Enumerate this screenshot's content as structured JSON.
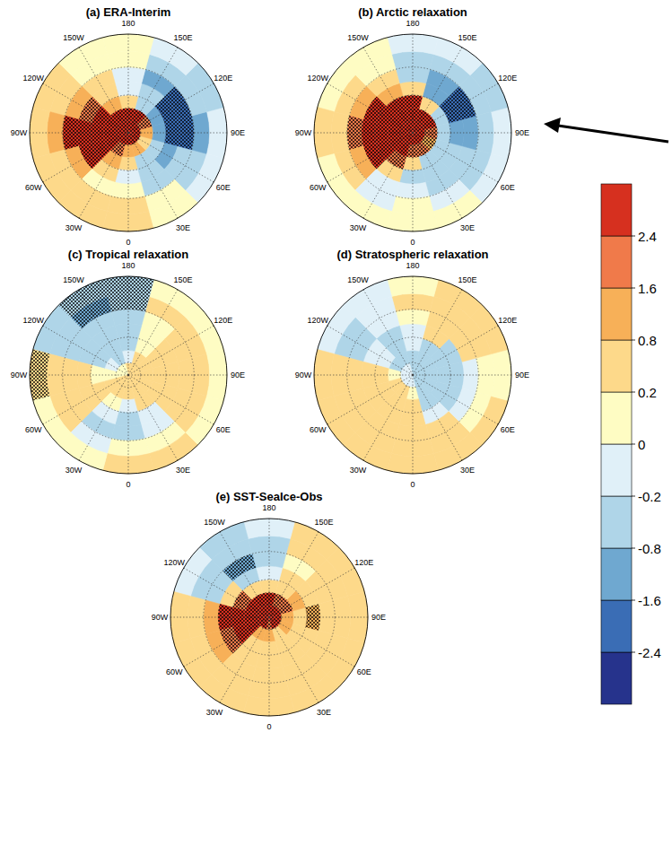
{
  "chart_data": {
    "type": "polar_map",
    "lat_edges": [
      90,
      80,
      70,
      60,
      50,
      40,
      30,
      20
    ],
    "lon_centers": [
      0,
      30,
      60,
      90,
      120,
      150,
      180,
      210,
      240,
      270,
      300,
      330
    ],
    "lon_labels": [
      0,
      {
        "value": 30,
        "label": "30E"
      },
      {
        "value": 60,
        "label": "60E"
      },
      {
        "value": 90,
        "label": "90E"
      },
      {
        "value": 120,
        "label": "120E"
      },
      {
        "value": 150,
        "label": "150E"
      },
      180,
      {
        "value": 210,
        "label": "150W"
      },
      {
        "value": 240,
        "label": "120W"
      },
      {
        "value": 270,
        "label": "90W"
      },
      {
        "value": 300,
        "label": "60W"
      },
      {
        "value": 330,
        "label": "30W"
      }
    ],
    "colorbar": {
      "ticks": [
        -2.4,
        -1.6,
        -0.8,
        -0.2,
        0,
        0.2,
        0.8,
        1.6,
        2.4
      ],
      "colors": [
        "#26338c",
        "#3a6db5",
        "#6fa8d0",
        "#afd5e8",
        "#e0f0f8",
        "#fefcc3",
        "#fdd98a",
        "#f7b058",
        "#f07a4a",
        "#d6301f"
      ]
    },
    "panels": [
      {
        "title": "(a) ERA-Interim",
        "values": [
          [
            2.6,
            2.8,
            2.8,
            3.0,
            3.0,
            3.2,
            3.2,
            3.2,
            3.0,
            3.0,
            2.8,
            2.6
          ],
          [
            1.2,
            1.0,
            0.6,
            1.2,
            2.0,
            3.0,
            3.2,
            3.2,
            2.8,
            2.8,
            2.6,
            1.8
          ],
          [
            0.3,
            -0.3,
            -0.6,
            -1.2,
            -1.0,
            -0.5,
            0.6,
            1.2,
            2.6,
            3.0,
            2.8,
            1.0
          ],
          [
            -0.1,
            -0.5,
            -0.9,
            -1.8,
            -2.0,
            -0.8,
            -0.1,
            0.4,
            1.8,
            3.0,
            2.8,
            0.3
          ],
          [
            0.1,
            -0.3,
            -0.8,
            -2.2,
            -1.8,
            -0.9,
            -0.2,
            0.2,
            0.8,
            2.4,
            1.2,
            0.1
          ],
          [
            0.4,
            0.1,
            -0.3,
            -0.9,
            -0.6,
            -0.4,
            0.0,
            0.1,
            0.6,
            1.2,
            0.6,
            0.2
          ],
          [
            0.2,
            0.1,
            -0.1,
            -0.2,
            -0.3,
            -0.1,
            0.1,
            0.1,
            0.3,
            0.4,
            0.3,
            0.3
          ]
        ],
        "stipple": [
          [
            0,
            0
          ],
          [
            0,
            1
          ],
          [
            0,
            2
          ],
          [
            0,
            3
          ],
          [
            0,
            4
          ],
          [
            0,
            5
          ],
          [
            0,
            6
          ],
          [
            0,
            7
          ],
          [
            0,
            8
          ],
          [
            0,
            9
          ],
          [
            0,
            10
          ],
          [
            0,
            11
          ],
          [
            1,
            4
          ],
          [
            1,
            5
          ],
          [
            1,
            6
          ],
          [
            1,
            7
          ],
          [
            1,
            8
          ],
          [
            1,
            9
          ],
          [
            1,
            10
          ],
          [
            1,
            11
          ],
          [
            2,
            8
          ],
          [
            2,
            9
          ],
          [
            2,
            10
          ],
          [
            3,
            3
          ],
          [
            3,
            4
          ],
          [
            3,
            8
          ],
          [
            3,
            9
          ],
          [
            3,
            10
          ],
          [
            4,
            3
          ],
          [
            4,
            4
          ],
          [
            4,
            9
          ]
        ]
      },
      {
        "title": "(b) Arctic relaxation",
        "values": [
          [
            3.0,
            3.0,
            3.0,
            3.0,
            3.0,
            3.0,
            3.0,
            3.0,
            3.0,
            3.0,
            3.0,
            3.0
          ],
          [
            2.2,
            1.6,
            1.4,
            1.8,
            2.6,
            3.0,
            3.2,
            3.2,
            3.2,
            3.2,
            3.0,
            2.6
          ],
          [
            0.4,
            -0.3,
            -0.6,
            -0.6,
            -0.4,
            0.6,
            2.4,
            2.8,
            3.0,
            3.0,
            2.8,
            1.6
          ],
          [
            -0.3,
            -0.5,
            -0.8,
            -1.0,
            -1.8,
            -0.9,
            0.2,
            0.8,
            2.6,
            3.0,
            2.6,
            0.3
          ],
          [
            -0.2,
            -0.6,
            -0.4,
            -0.9,
            -1.7,
            -1.0,
            -0.3,
            0.2,
            1.2,
            2.0,
            1.0,
            -0.2
          ],
          [
            0.1,
            -0.2,
            -0.3,
            -0.4,
            -0.8,
            -0.6,
            -0.3,
            0.1,
            0.3,
            0.4,
            0.2,
            -0.2
          ],
          [
            0.1,
            0.0,
            -0.1,
            -0.2,
            -0.3,
            -0.2,
            -0.1,
            0.0,
            0.1,
            0.2,
            0.1,
            0.0
          ]
        ],
        "stipple": [
          [
            0,
            0
          ],
          [
            0,
            1
          ],
          [
            0,
            2
          ],
          [
            0,
            3
          ],
          [
            0,
            4
          ],
          [
            0,
            5
          ],
          [
            0,
            6
          ],
          [
            0,
            7
          ],
          [
            0,
            8
          ],
          [
            0,
            9
          ],
          [
            0,
            10
          ],
          [
            0,
            11
          ],
          [
            1,
            0
          ],
          [
            1,
            1
          ],
          [
            1,
            2
          ],
          [
            1,
            3
          ],
          [
            1,
            4
          ],
          [
            1,
            5
          ],
          [
            1,
            6
          ],
          [
            1,
            7
          ],
          [
            1,
            8
          ],
          [
            1,
            9
          ],
          [
            1,
            10
          ],
          [
            1,
            11
          ],
          [
            2,
            6
          ],
          [
            2,
            7
          ],
          [
            2,
            8
          ],
          [
            2,
            9
          ],
          [
            2,
            10
          ],
          [
            2,
            11
          ],
          [
            3,
            4
          ],
          [
            3,
            8
          ],
          [
            3,
            9
          ],
          [
            3,
            10
          ],
          [
            4,
            4
          ],
          [
            4,
            9
          ]
        ]
      },
      {
        "title": "(c) Tropical relaxation",
        "values": [
          [
            0.3,
            0.3,
            0.3,
            0.3,
            0.3,
            0.2,
            0.2,
            0.1,
            0.1,
            0.1,
            0.2,
            0.2
          ],
          [
            0.2,
            0.3,
            0.4,
            0.4,
            0.3,
            0.2,
            -0.1,
            -0.3,
            -0.2,
            0.1,
            0.2,
            0.2
          ],
          [
            -0.1,
            0.2,
            0.4,
            0.5,
            0.4,
            0.1,
            -0.3,
            -0.6,
            -0.4,
            0.1,
            0.3,
            0.1
          ],
          [
            -0.3,
            -0.2,
            0.3,
            0.5,
            0.4,
            0.0,
            -0.4,
            -0.7,
            -0.4,
            0.2,
            0.3,
            -0.1
          ],
          [
            -0.5,
            -0.2,
            0.2,
            0.3,
            0.3,
            0.1,
            -0.3,
            -0.6,
            -0.5,
            0.3,
            0.4,
            -0.3
          ],
          [
            0.1,
            0.1,
            0.2,
            0.2,
            0.2,
            0.2,
            -0.5,
            -0.9,
            -0.6,
            0.5,
            0.2,
            -0.2
          ],
          [
            0.2,
            0.2,
            0.1,
            0.1,
            0.1,
            0.1,
            -0.6,
            -0.8,
            -0.3,
            0.6,
            0.1,
            0.1
          ]
        ],
        "stipple": [
          [
            5,
            6
          ],
          [
            5,
            7
          ],
          [
            6,
            6
          ],
          [
            6,
            7
          ],
          [
            6,
            9
          ]
        ]
      },
      {
        "title": "(d) Stratospheric relaxation",
        "values": [
          [
            -0.2,
            -0.3,
            -0.3,
            -0.3,
            -0.3,
            -0.3,
            -0.3,
            -0.2,
            -0.2,
            -0.2,
            -0.1,
            -0.1
          ],
          [
            0.1,
            -0.3,
            -0.4,
            -0.5,
            -0.4,
            -0.4,
            -0.3,
            -0.3,
            -0.3,
            0.1,
            0.3,
            0.3
          ],
          [
            0.2,
            -0.3,
            -0.5,
            -0.5,
            -0.4,
            -0.3,
            -0.2,
            -0.3,
            -0.2,
            0.3,
            0.5,
            0.4
          ],
          [
            0.3,
            -0.2,
            -0.4,
            -0.4,
            -0.3,
            0.2,
            -0.1,
            -0.3,
            -0.2,
            0.3,
            0.4,
            0.3
          ],
          [
            0.3,
            0.2,
            -0.2,
            -0.2,
            0.2,
            0.3,
            0.1,
            -0.2,
            -0.3,
            0.2,
            0.3,
            0.2
          ],
          [
            0.2,
            0.3,
            0.1,
            0.1,
            0.3,
            0.3,
            0.2,
            -0.1,
            -0.3,
            0.2,
            0.2,
            0.3
          ],
          [
            0.2,
            0.2,
            0.2,
            0.1,
            0.2,
            0.2,
            0.1,
            -0.1,
            -0.2,
            0.2,
            0.2,
            0.2
          ]
        ],
        "stipple": []
      },
      {
        "title": "(e) SST-SeaIce-Obs",
        "values": [
          [
            2.2,
            2.4,
            2.6,
            2.8,
            2.8,
            2.8,
            2.8,
            2.8,
            3.0,
            3.0,
            2.8,
            2.4
          ],
          [
            0.8,
            0.6,
            0.8,
            1.2,
            1.6,
            2.0,
            2.4,
            2.6,
            3.0,
            3.0,
            2.8,
            1.4
          ],
          [
            0.3,
            0.2,
            0.4,
            0.6,
            0.8,
            0.6,
            0.4,
            0.6,
            1.6,
            3.0,
            2.6,
            0.6
          ],
          [
            0.4,
            0.2,
            0.6,
            1.2,
            0.6,
            0.2,
            -0.2,
            -0.4,
            0.6,
            2.4,
            2.0,
            0.4
          ],
          [
            0.5,
            0.3,
            0.4,
            0.4,
            0.3,
            0.1,
            -0.4,
            -0.9,
            -0.6,
            1.0,
            0.8,
            0.4
          ],
          [
            0.6,
            0.4,
            0.3,
            0.3,
            0.2,
            0.2,
            -0.3,
            -0.8,
            -0.5,
            0.4,
            0.4,
            0.6
          ],
          [
            0.4,
            0.3,
            0.2,
            0.2,
            0.2,
            0.2,
            -0.2,
            -0.4,
            -0.2,
            0.2,
            0.3,
            0.4
          ]
        ],
        "stipple": [
          [
            0,
            0
          ],
          [
            0,
            1
          ],
          [
            0,
            2
          ],
          [
            0,
            3
          ],
          [
            0,
            4
          ],
          [
            0,
            5
          ],
          [
            0,
            6
          ],
          [
            0,
            7
          ],
          [
            0,
            8
          ],
          [
            0,
            9
          ],
          [
            0,
            10
          ],
          [
            0,
            11
          ],
          [
            1,
            4
          ],
          [
            1,
            5
          ],
          [
            1,
            6
          ],
          [
            1,
            7
          ],
          [
            1,
            8
          ],
          [
            1,
            9
          ],
          [
            1,
            10
          ],
          [
            2,
            8
          ],
          [
            2,
            9
          ],
          [
            2,
            10
          ],
          [
            3,
            3
          ],
          [
            3,
            9
          ],
          [
            3,
            10
          ],
          [
            4,
            7
          ]
        ]
      }
    ]
  }
}
